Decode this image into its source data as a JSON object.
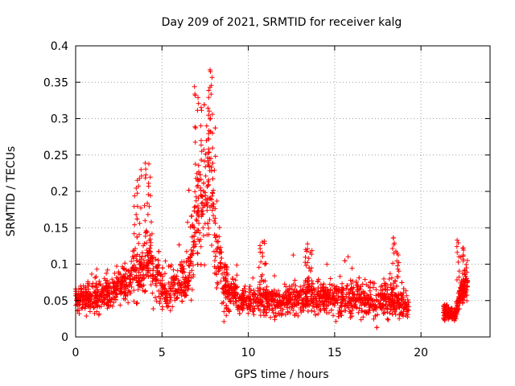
{
  "chart_data": {
    "type": "scatter",
    "title": "Day 209 of 2021, SRMTID for receiver kalg",
    "xlabel": "GPS time / hours",
    "ylabel": "SRMTID / TECUs",
    "xlim": [
      0,
      24
    ],
    "ylim": [
      0,
      0.4
    ],
    "xticks": [
      0,
      5,
      10,
      15,
      20
    ],
    "xtick_labels": [
      "0",
      "5",
      "10",
      "15",
      "20"
    ],
    "yticks": [
      0,
      0.05,
      0.1,
      0.15,
      0.2,
      0.25,
      0.3,
      0.35,
      0.4
    ],
    "ytick_labels": [
      "0",
      "0.05",
      "0.1",
      "0.15",
      "0.2",
      "0.25",
      "0.3",
      "0.35",
      "0.4"
    ],
    "grid": true,
    "marker": "plus",
    "color": "#ff0000",
    "series": [
      {
        "name": "SRMTID",
        "envelope_note": "approximate median level, spread and peak envelope of the dense point cloud (estimated)",
        "segments": [
          {
            "x_start": 0.0,
            "x_end": 19.3,
            "count": 2600
          },
          {
            "x_start": 21.3,
            "x_end": 22.7,
            "count": 260
          }
        ],
        "median_profile": [
          [
            0,
            0.052
          ],
          [
            1,
            0.055
          ],
          [
            2,
            0.062
          ],
          [
            3,
            0.075
          ],
          [
            3.6,
            0.085
          ],
          [
            4.2,
            0.11
          ],
          [
            4.6,
            0.09
          ],
          [
            5.2,
            0.06
          ],
          [
            5.8,
            0.07
          ],
          [
            6.5,
            0.08
          ],
          [
            7.0,
            0.16
          ],
          [
            7.5,
            0.2
          ],
          [
            7.8,
            0.22
          ],
          [
            8.2,
            0.12
          ],
          [
            8.6,
            0.07
          ],
          [
            9.5,
            0.05
          ],
          [
            10.5,
            0.05
          ],
          [
            12,
            0.05
          ],
          [
            13,
            0.055
          ],
          [
            15,
            0.055
          ],
          [
            17,
            0.05
          ],
          [
            18.5,
            0.05
          ],
          [
            19.3,
            0.04
          ],
          [
            21.3,
            0.035
          ],
          [
            22,
            0.03
          ],
          [
            22.3,
            0.06
          ],
          [
            22.7,
            0.075
          ]
        ],
        "spread_profile": [
          [
            0,
            0.012
          ],
          [
            3,
            0.02
          ],
          [
            4.2,
            0.035
          ],
          [
            5,
            0.02
          ],
          [
            6,
            0.02
          ],
          [
            7.3,
            0.06
          ],
          [
            7.9,
            0.09
          ],
          [
            8.3,
            0.04
          ],
          [
            9,
            0.015
          ],
          [
            13,
            0.016
          ],
          [
            18.5,
            0.02
          ],
          [
            19.3,
            0.012
          ],
          [
            21.3,
            0.008
          ],
          [
            22,
            0.006
          ],
          [
            22.7,
            0.02
          ]
        ],
        "peaks": [
          {
            "x": 3.6,
            "y": 0.23
          },
          {
            "x": 4.2,
            "y": 0.243
          },
          {
            "x": 7.1,
            "y": 0.345
          },
          {
            "x": 7.75,
            "y": 0.367
          },
          {
            "x": 10.8,
            "y": 0.134
          },
          {
            "x": 13.5,
            "y": 0.128
          },
          {
            "x": 18.5,
            "y": 0.136
          },
          {
            "x": 22.3,
            "y": 0.133
          }
        ]
      }
    ]
  }
}
